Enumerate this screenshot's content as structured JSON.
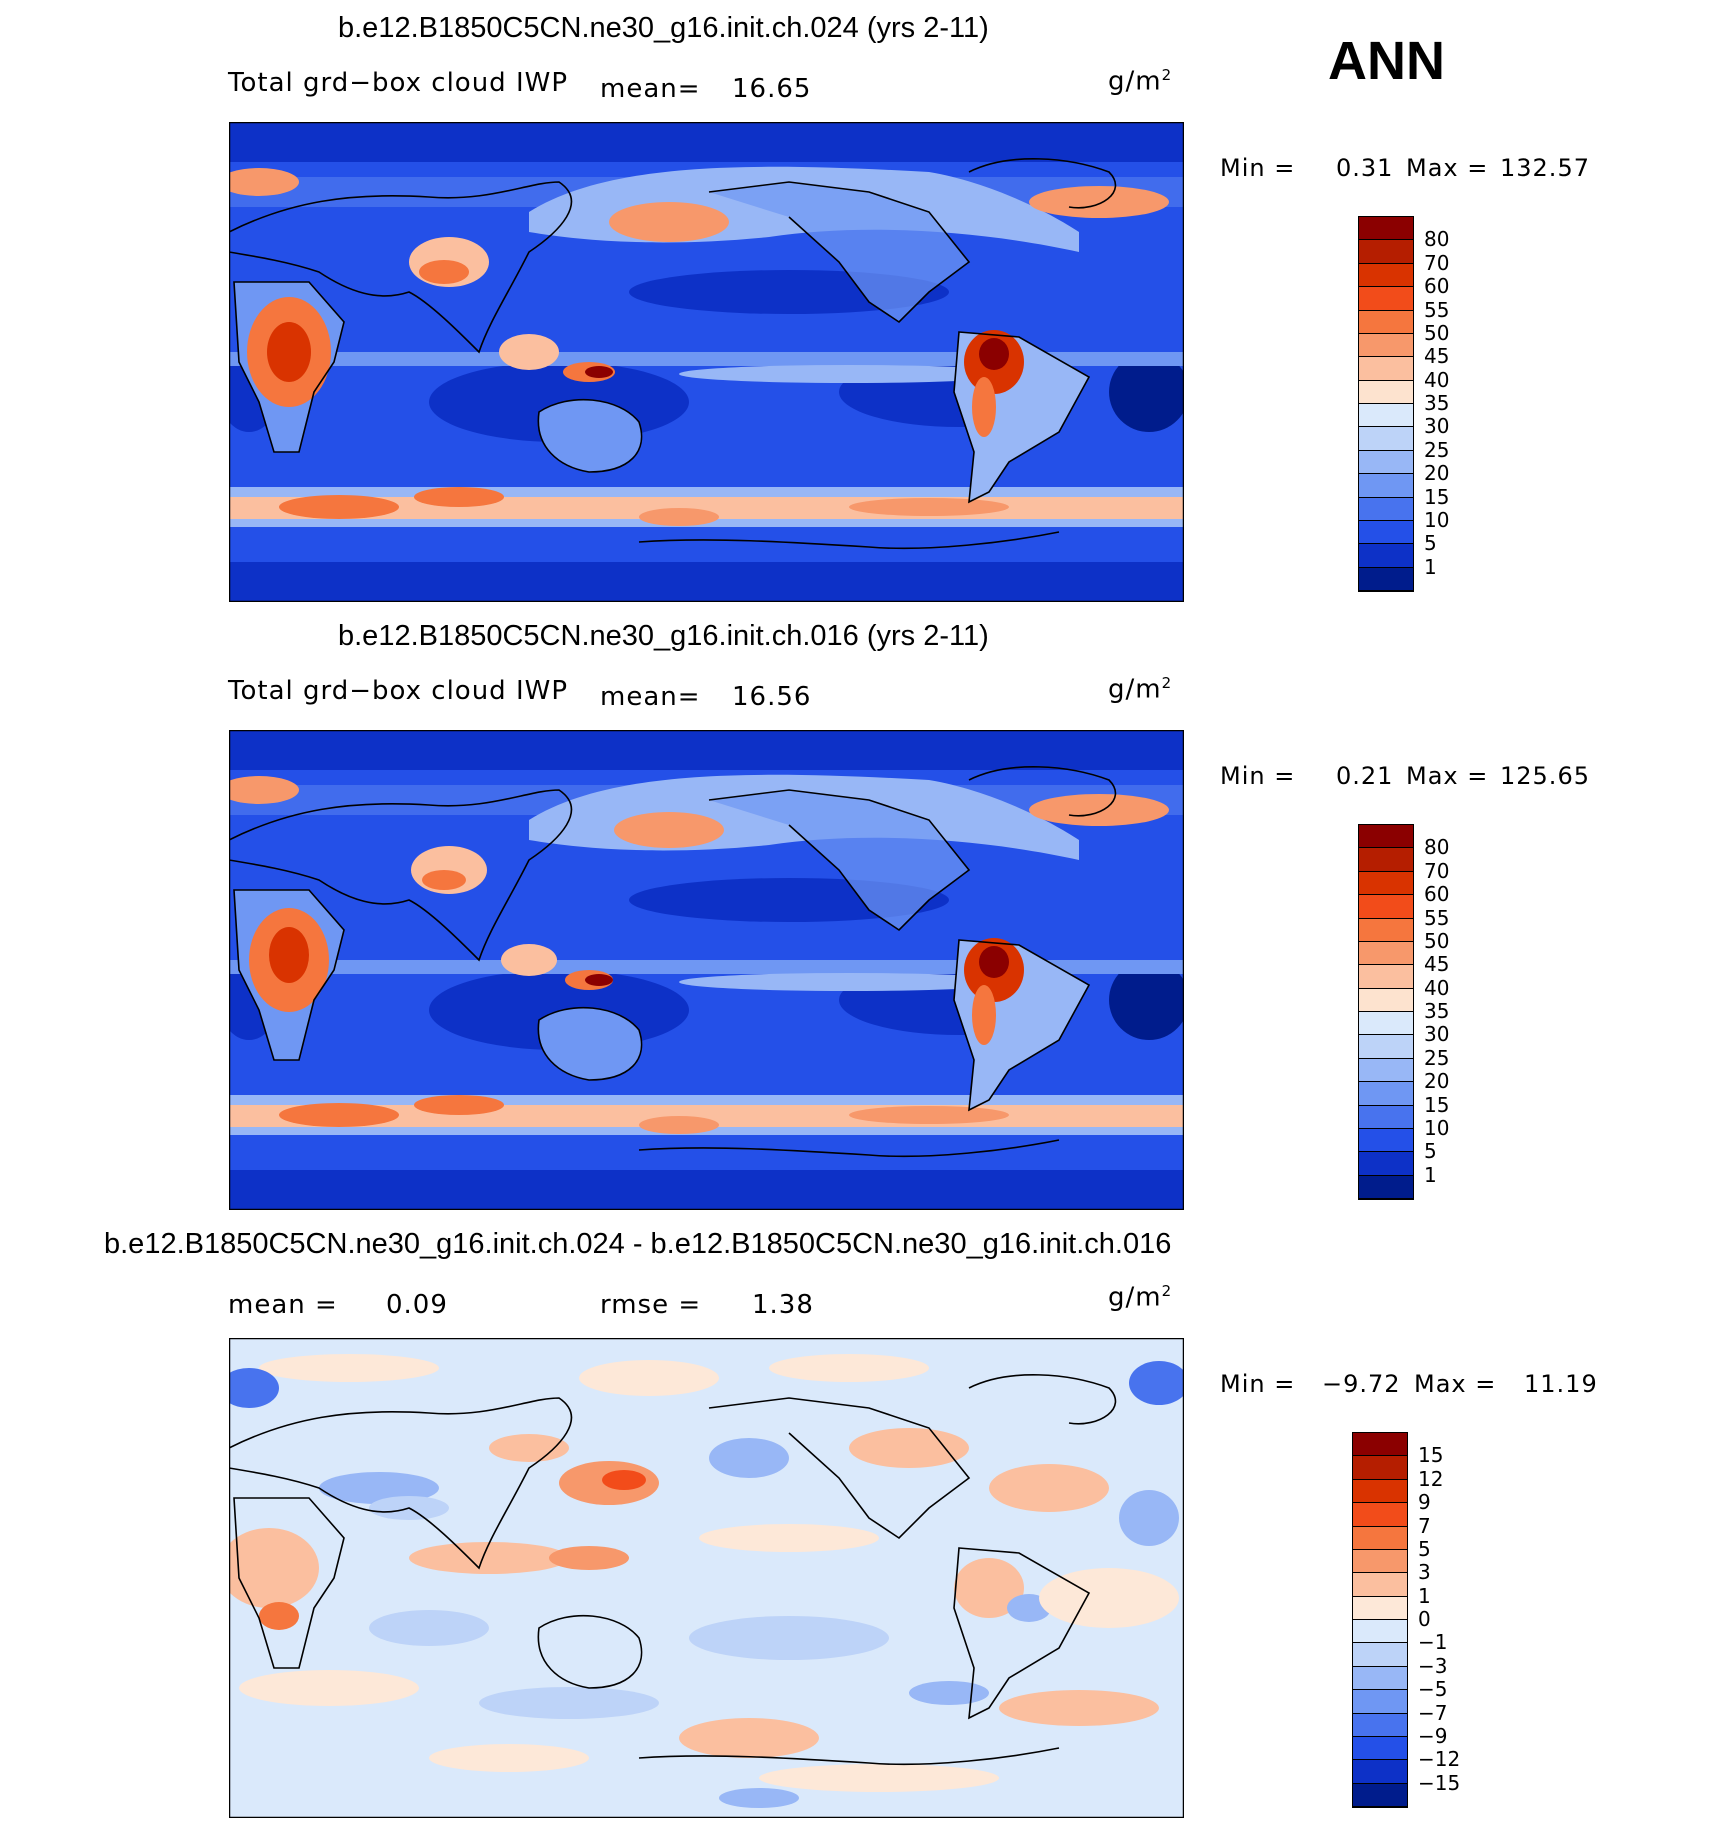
{
  "season": "ANN",
  "panels": [
    {
      "title": "b.e12.B1850C5CN.ne30_g16.init.ch.024 (yrs 2-11)",
      "subtitle": "Total grd−box cloud IWP",
      "mean_label": "mean=",
      "mean_value": "16.65",
      "units": "g/m",
      "units_sup": "2",
      "min_label": "Min =",
      "min_value": "0.31",
      "max_label": "Max =",
      "max_value": "132.57",
      "levels": [
        "80",
        "70",
        "60",
        "55",
        "50",
        "45",
        "40",
        "35",
        "30",
        "25",
        "20",
        "15",
        "10",
        "5",
        "1"
      ],
      "level_colors": [
        "#8b0000",
        "#b51e00",
        "#d93300",
        "#f24c1a",
        "#f5763e",
        "#f7986b",
        "#fbbf9f",
        "#fde3cf",
        "#dae9fb",
        "#bdd3f8",
        "#98b7f6",
        "#6f97f3",
        "#4873ee",
        "#2450e8",
        "#0d31c7",
        "#001c8c"
      ]
    },
    {
      "title": "b.e12.B1850C5CN.ne30_g16.init.ch.016 (yrs 2-11)",
      "subtitle": "Total grd−box cloud IWP",
      "mean_label": "mean=",
      "mean_value": "16.56",
      "units": "g/m",
      "units_sup": "2",
      "min_label": "Min =",
      "min_value": "0.21",
      "max_label": "Max =",
      "max_value": "125.65",
      "levels": [
        "80",
        "70",
        "60",
        "55",
        "50",
        "45",
        "40",
        "35",
        "30",
        "25",
        "20",
        "15",
        "10",
        "5",
        "1"
      ],
      "level_colors": [
        "#8b0000",
        "#b51e00",
        "#d93300",
        "#f24c1a",
        "#f5763e",
        "#f7986b",
        "#fbbf9f",
        "#fde3cf",
        "#dae9fb",
        "#bdd3f8",
        "#98b7f6",
        "#6f97f3",
        "#4873ee",
        "#2450e8",
        "#0d31c7",
        "#001c8c"
      ]
    },
    {
      "title": "b.e12.B1850C5CN.ne30_g16.init.ch.024 - b.e12.B1850C5CN.ne30_g16.init.ch.016",
      "mean_label": "mean =",
      "mean_value": "0.09",
      "rmse_label": "rmse =",
      "rmse_value": "1.38",
      "units": "g/m",
      "units_sup": "2",
      "min_label": "Min =",
      "min_value": "−9.72",
      "max_label": "Max =",
      "max_value": "11.19",
      "levels": [
        "15",
        "12",
        "9",
        "7",
        "5",
        "3",
        "1",
        "0",
        "−1",
        "−3",
        "−5",
        "−7",
        "−9",
        "−12",
        "−15"
      ],
      "level_colors": [
        "#8b0000",
        "#b51e00",
        "#d93300",
        "#f24c1a",
        "#f5763e",
        "#f7986b",
        "#fbbf9f",
        "#fde8d8",
        "#dae9fb",
        "#bdd3f8",
        "#98b7f6",
        "#6f97f3",
        "#4873ee",
        "#2450e8",
        "#0d31c7",
        "#001c8c"
      ]
    }
  ]
}
